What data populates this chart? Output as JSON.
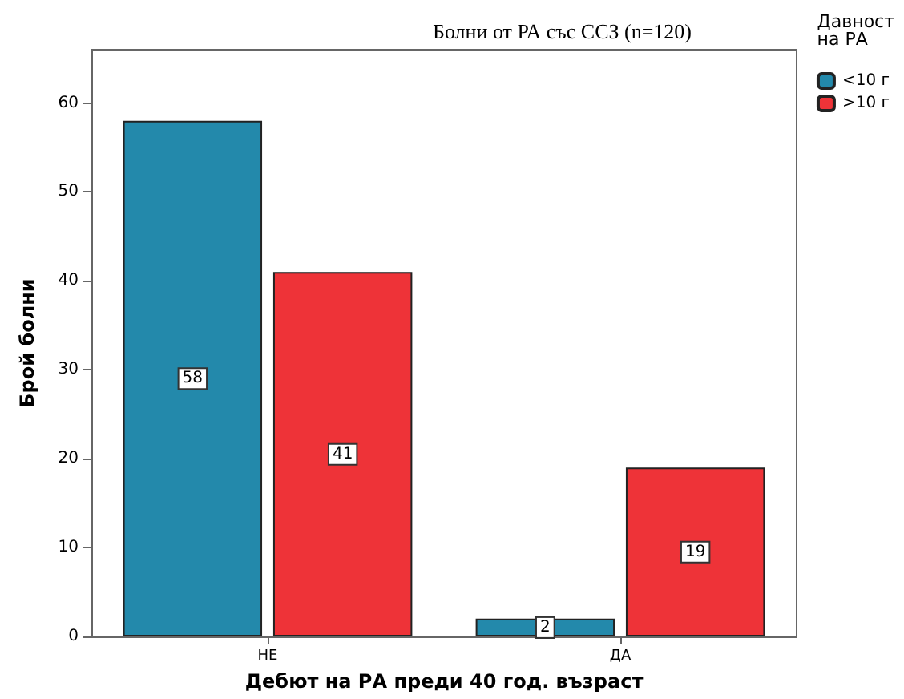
{
  "chart_data": {
    "type": "bar",
    "title": "Болни от РА със ССЗ (n=120)",
    "xlabel": "Дебют на РА преди 40 год. възраст",
    "ylabel": "Брой болни",
    "legend_title": "Давност\nна РА",
    "categories": [
      "НЕ",
      "ДА"
    ],
    "series": [
      {
        "name": "<10 г",
        "color": "#2389ab",
        "values": [
          58,
          2
        ]
      },
      {
        "name": ">10 г",
        "color": "#ee3338",
        "values": [
          41,
          19
        ]
      }
    ],
    "ylim": [
      0,
      66
    ],
    "yticks": [
      0,
      10,
      20,
      30,
      40,
      50,
      60
    ],
    "grid": false,
    "legend": "top right",
    "data_labels": true
  }
}
